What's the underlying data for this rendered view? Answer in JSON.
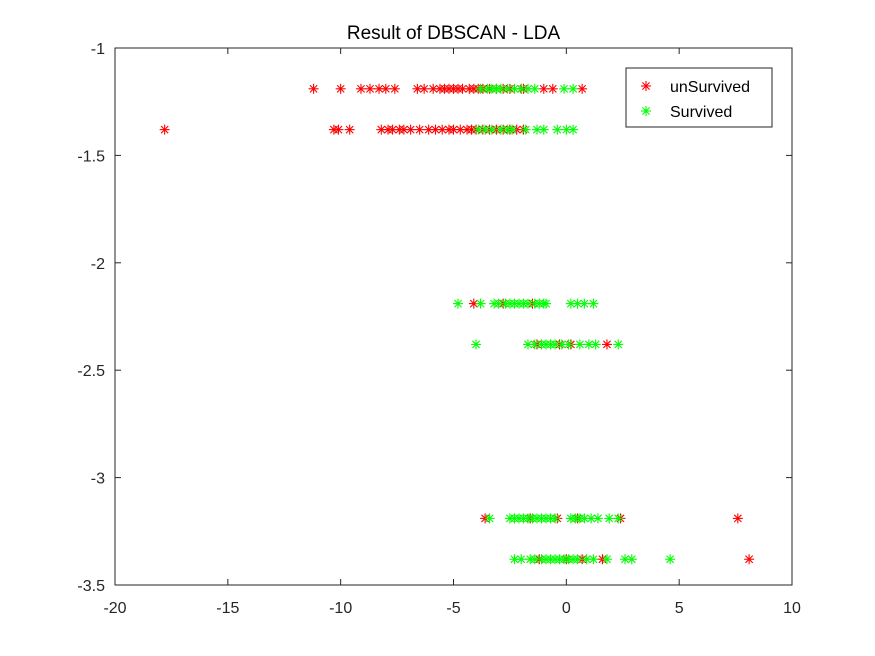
{
  "chart_data": {
    "type": "scatter",
    "title": "Result of DBSCAN - LDA",
    "xlabel": "",
    "ylabel": "",
    "xlim": [
      -20,
      10
    ],
    "ylim": [
      -3.5,
      -1
    ],
    "xticks": [
      -20,
      -15,
      -10,
      -5,
      0,
      5,
      10
    ],
    "yticks": [
      -1,
      -1.5,
      -2,
      -2.5,
      -3,
      -3.5
    ],
    "xtick_labels": [
      "-20",
      "-15",
      "-10",
      "-5",
      "0",
      "5",
      "10"
    ],
    "ytick_labels": [
      "-1",
      "-1.5",
      "-2",
      "-2.5",
      "-3",
      "-3.5"
    ],
    "grid": false,
    "legend_position": "top-right",
    "marker": "asterisk",
    "series": [
      {
        "name": "unSurvived",
        "color": "#ff0000",
        "points": [
          [
            -11.2,
            -1.19
          ],
          [
            -10.0,
            -1.19
          ],
          [
            -9.1,
            -1.19
          ],
          [
            -8.7,
            -1.19
          ],
          [
            -8.3,
            -1.19
          ],
          [
            -8.0,
            -1.19
          ],
          [
            -7.6,
            -1.19
          ],
          [
            -6.6,
            -1.19
          ],
          [
            -6.3,
            -1.19
          ],
          [
            -5.9,
            -1.19
          ],
          [
            -5.6,
            -1.19
          ],
          [
            -5.4,
            -1.19
          ],
          [
            -5.2,
            -1.19
          ],
          [
            -5.0,
            -1.19
          ],
          [
            -4.8,
            -1.19
          ],
          [
            -4.6,
            -1.19
          ],
          [
            -4.3,
            -1.19
          ],
          [
            -4.1,
            -1.19
          ],
          [
            -3.9,
            -1.19
          ],
          [
            -3.7,
            -1.19
          ],
          [
            -3.4,
            -1.19
          ],
          [
            -3.1,
            -1.19
          ],
          [
            -2.8,
            -1.19
          ],
          [
            -2.5,
            -1.19
          ],
          [
            -2.0,
            -1.19
          ],
          [
            -1.9,
            -1.19
          ],
          [
            -1.0,
            -1.19
          ],
          [
            -0.6,
            -1.19
          ],
          [
            0.7,
            -1.19
          ],
          [
            -17.8,
            -1.38
          ],
          [
            -10.3,
            -1.38
          ],
          [
            -10.1,
            -1.38
          ],
          [
            -9.6,
            -1.38
          ],
          [
            -8.2,
            -1.38
          ],
          [
            -7.9,
            -1.38
          ],
          [
            -7.7,
            -1.38
          ],
          [
            -7.4,
            -1.38
          ],
          [
            -7.2,
            -1.38
          ],
          [
            -6.9,
            -1.38
          ],
          [
            -6.5,
            -1.38
          ],
          [
            -6.1,
            -1.38
          ],
          [
            -5.8,
            -1.38
          ],
          [
            -5.5,
            -1.38
          ],
          [
            -5.2,
            -1.38
          ],
          [
            -5.0,
            -1.38
          ],
          [
            -4.7,
            -1.38
          ],
          [
            -4.4,
            -1.38
          ],
          [
            -4.2,
            -1.38
          ],
          [
            -4.0,
            -1.38
          ],
          [
            -3.7,
            -1.38
          ],
          [
            -3.4,
            -1.38
          ],
          [
            -3.1,
            -1.38
          ],
          [
            -2.8,
            -1.38
          ],
          [
            -2.5,
            -1.38
          ],
          [
            -2.2,
            -1.38
          ],
          [
            -1.9,
            -1.38
          ],
          [
            -4.1,
            -2.19
          ],
          [
            -2.8,
            -2.19
          ],
          [
            -1.5,
            -2.19
          ],
          [
            -1.3,
            -2.38
          ],
          [
            -0.3,
            -2.38
          ],
          [
            0.2,
            -2.38
          ],
          [
            1.8,
            -2.38
          ],
          [
            -3.6,
            -3.19
          ],
          [
            -1.6,
            -3.19
          ],
          [
            -0.4,
            -3.19
          ],
          [
            0.5,
            -3.19
          ],
          [
            2.4,
            -3.19
          ],
          [
            7.6,
            -3.19
          ],
          [
            -1.2,
            -3.38
          ],
          [
            0.0,
            -3.38
          ],
          [
            0.7,
            -3.38
          ],
          [
            1.6,
            -3.38
          ],
          [
            8.1,
            -3.38
          ]
        ]
      },
      {
        "name": "Survived",
        "color": "#00ff00",
        "points": [
          [
            -3.8,
            -1.19
          ],
          [
            -3.5,
            -1.19
          ],
          [
            -3.3,
            -1.19
          ],
          [
            -3.1,
            -1.19
          ],
          [
            -2.9,
            -1.19
          ],
          [
            -2.6,
            -1.19
          ],
          [
            -2.3,
            -1.19
          ],
          [
            -2.0,
            -1.19
          ],
          [
            -1.7,
            -1.19
          ],
          [
            -1.4,
            -1.19
          ],
          [
            -0.1,
            -1.19
          ],
          [
            0.3,
            -1.19
          ],
          [
            -3.9,
            -1.38
          ],
          [
            -3.6,
            -1.38
          ],
          [
            -3.3,
            -1.38
          ],
          [
            -2.9,
            -1.38
          ],
          [
            -2.6,
            -1.38
          ],
          [
            -2.4,
            -1.38
          ],
          [
            -1.8,
            -1.38
          ],
          [
            -1.3,
            -1.38
          ],
          [
            -1.0,
            -1.38
          ],
          [
            -0.4,
            -1.38
          ],
          [
            0.0,
            -1.38
          ],
          [
            0.3,
            -1.38
          ],
          [
            -4.8,
            -2.19
          ],
          [
            -3.8,
            -2.19
          ],
          [
            -3.2,
            -2.19
          ],
          [
            -3.0,
            -2.19
          ],
          [
            -2.7,
            -2.19
          ],
          [
            -2.5,
            -2.19
          ],
          [
            -2.3,
            -2.19
          ],
          [
            -2.1,
            -2.19
          ],
          [
            -1.9,
            -2.19
          ],
          [
            -1.7,
            -2.19
          ],
          [
            -1.4,
            -2.19
          ],
          [
            -1.2,
            -2.19
          ],
          [
            -1.0,
            -2.19
          ],
          [
            -0.9,
            -2.19
          ],
          [
            0.2,
            -2.19
          ],
          [
            0.5,
            -2.19
          ],
          [
            0.8,
            -2.19
          ],
          [
            1.2,
            -2.19
          ],
          [
            -4.0,
            -2.38
          ],
          [
            -1.7,
            -2.38
          ],
          [
            -1.4,
            -2.38
          ],
          [
            -1.1,
            -2.38
          ],
          [
            -0.9,
            -2.38
          ],
          [
            -0.7,
            -2.38
          ],
          [
            -0.5,
            -2.38
          ],
          [
            -0.2,
            -2.38
          ],
          [
            0.1,
            -2.38
          ],
          [
            0.6,
            -2.38
          ],
          [
            1.0,
            -2.38
          ],
          [
            1.3,
            -2.38
          ],
          [
            2.3,
            -2.38
          ],
          [
            -3.4,
            -3.19
          ],
          [
            -2.5,
            -3.19
          ],
          [
            -2.3,
            -3.19
          ],
          [
            -2.1,
            -3.19
          ],
          [
            -1.9,
            -3.19
          ],
          [
            -1.7,
            -3.19
          ],
          [
            -1.5,
            -3.19
          ],
          [
            -1.3,
            -3.19
          ],
          [
            -1.1,
            -3.19
          ],
          [
            -0.9,
            -3.19
          ],
          [
            -0.7,
            -3.19
          ],
          [
            -0.5,
            -3.19
          ],
          [
            0.2,
            -3.19
          ],
          [
            0.4,
            -3.19
          ],
          [
            0.6,
            -3.19
          ],
          [
            0.8,
            -3.19
          ],
          [
            1.1,
            -3.19
          ],
          [
            1.4,
            -3.19
          ],
          [
            1.9,
            -3.19
          ],
          [
            2.3,
            -3.19
          ],
          [
            -2.3,
            -3.38
          ],
          [
            -2.0,
            -3.38
          ],
          [
            -1.6,
            -3.38
          ],
          [
            -1.4,
            -3.38
          ],
          [
            -1.1,
            -3.38
          ],
          [
            -0.9,
            -3.38
          ],
          [
            -0.7,
            -3.38
          ],
          [
            -0.5,
            -3.38
          ],
          [
            -0.3,
            -3.38
          ],
          [
            -0.1,
            -3.38
          ],
          [
            0.1,
            -3.38
          ],
          [
            0.3,
            -3.38
          ],
          [
            0.5,
            -3.38
          ],
          [
            0.9,
            -3.38
          ],
          [
            1.2,
            -3.38
          ],
          [
            1.8,
            -3.38
          ],
          [
            2.6,
            -3.38
          ],
          [
            2.9,
            -3.38
          ],
          [
            4.6,
            -3.38
          ]
        ]
      }
    ]
  }
}
